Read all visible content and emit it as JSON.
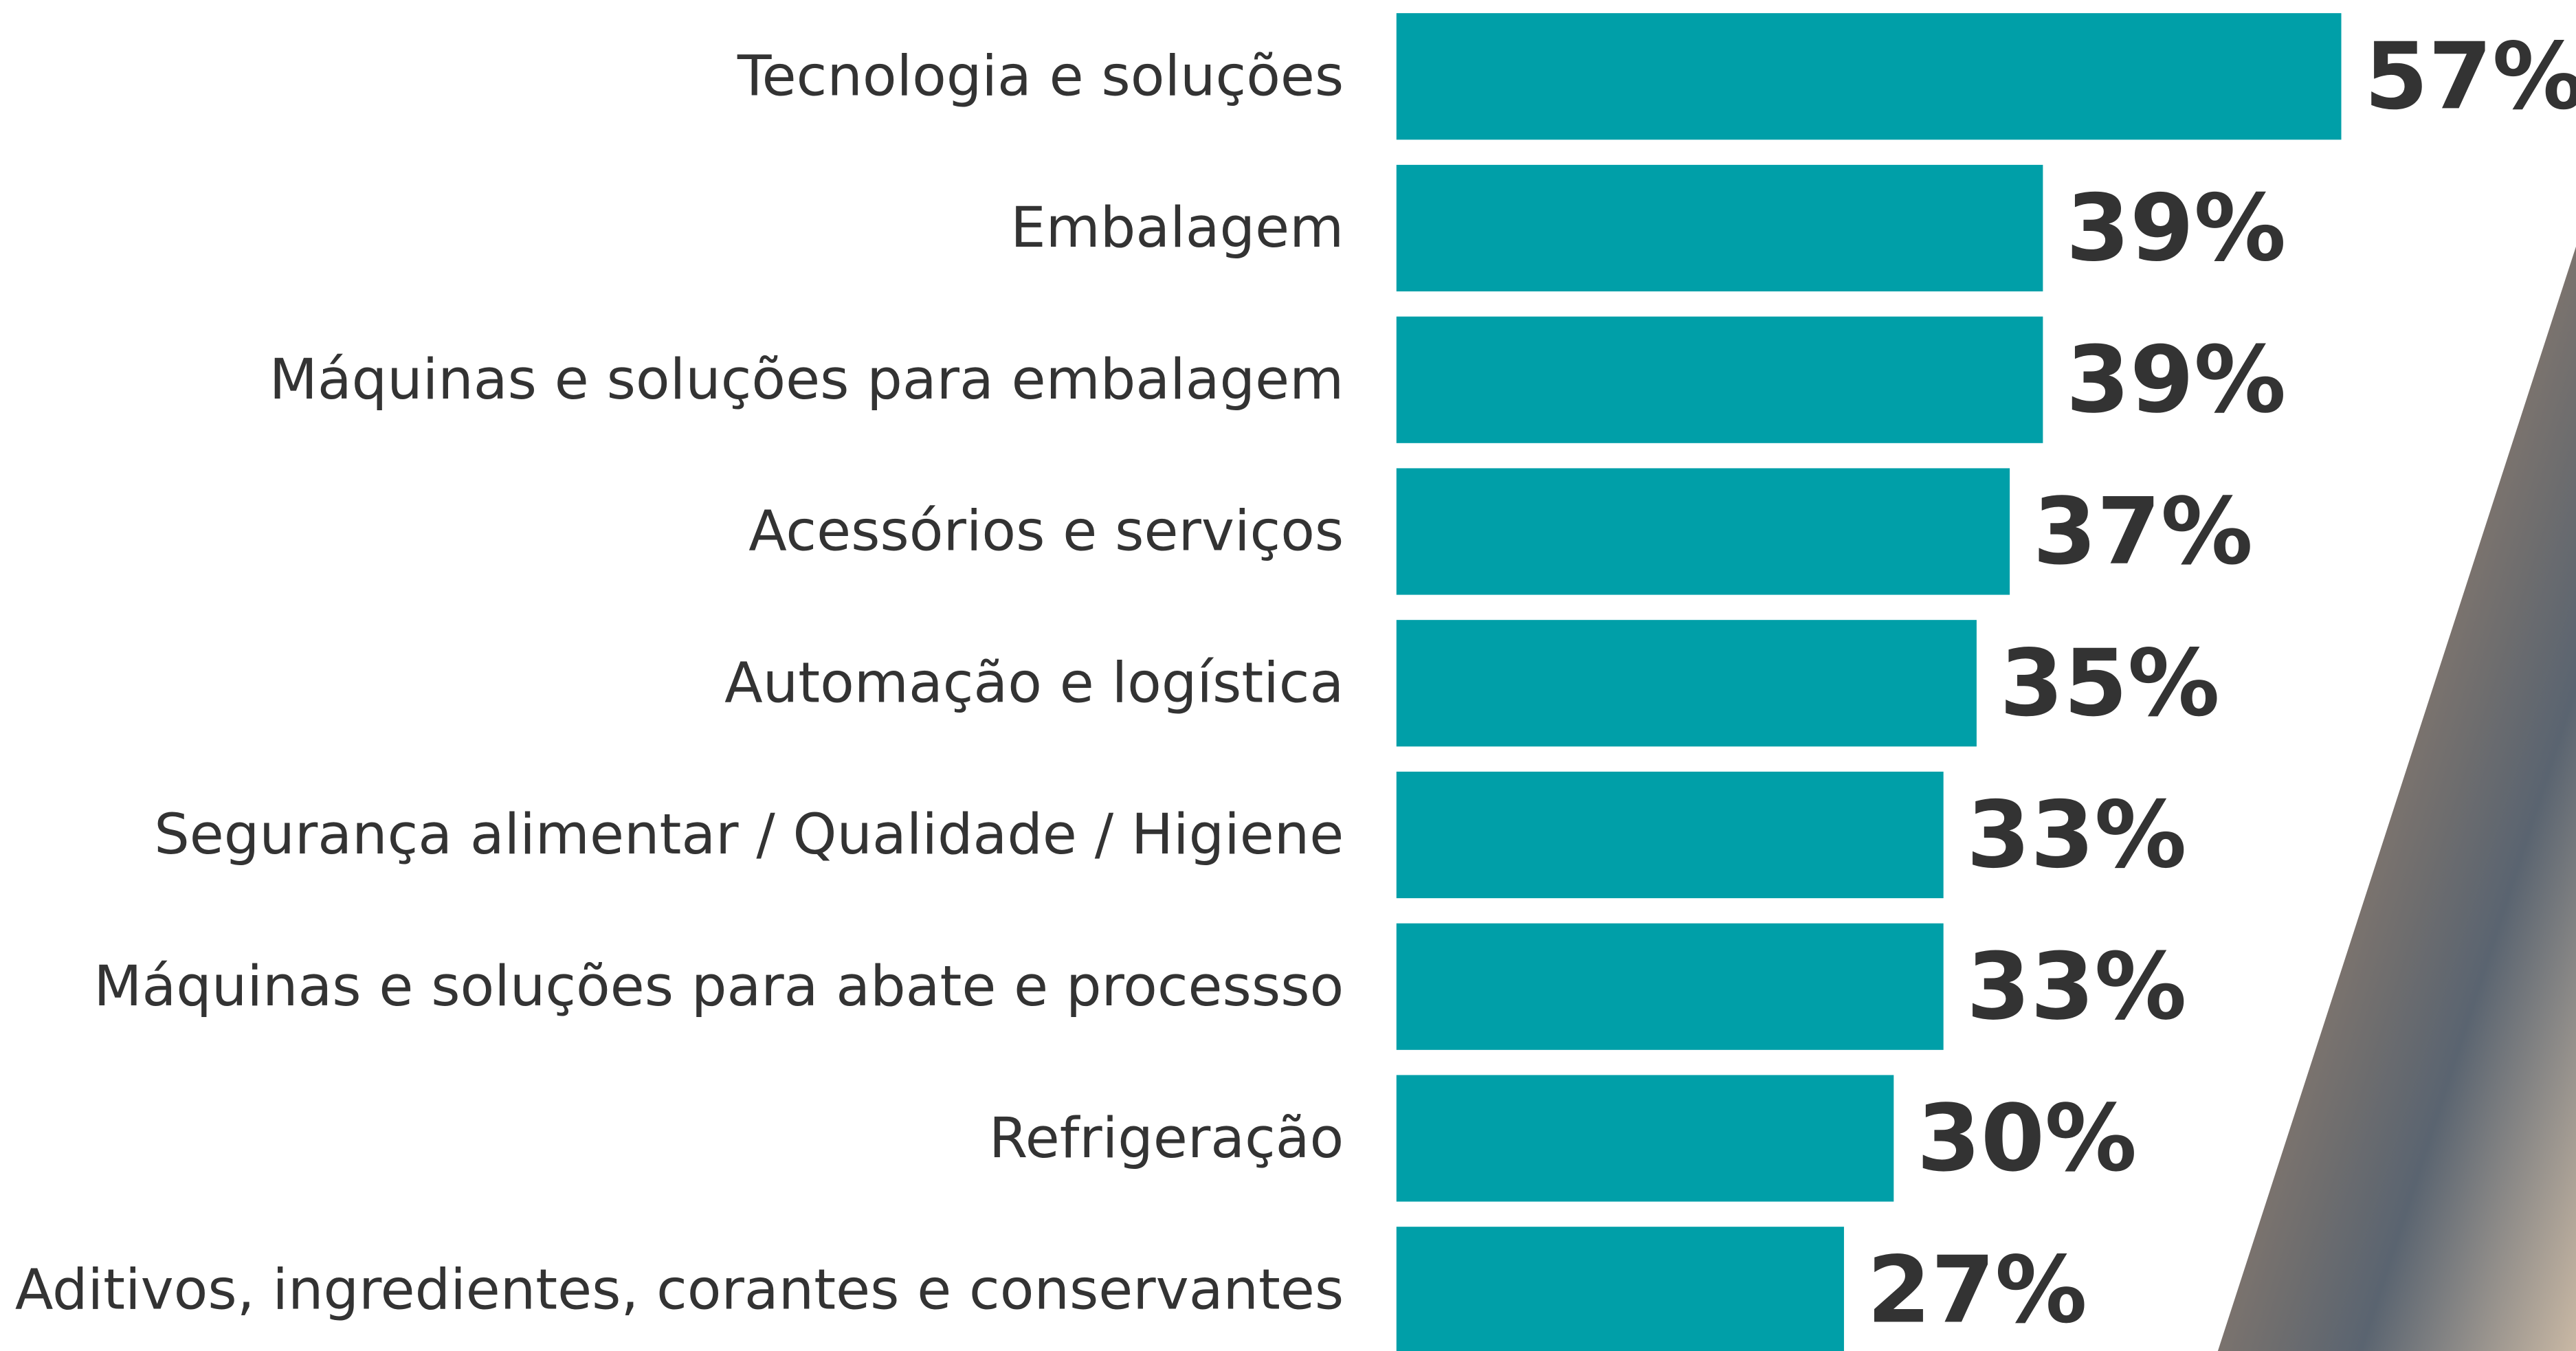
{
  "chart_data": {
    "type": "bar",
    "orientation": "horizontal",
    "categories": [
      "Tecnologia e soluções",
      "Embalagem",
      "Máquinas e soluções para embalagem",
      "Acessórios e serviços",
      "Automação e logística",
      "Segurança alimentar / Qualidade / Higiene",
      "Máquinas e soluções para abate e processso",
      "Refrigeração",
      "Aditivos, ingredientes, corantes e conservantes"
    ],
    "values": [
      57,
      39,
      39,
      37,
      35,
      33,
      33,
      30,
      27
    ],
    "value_labels": [
      "57%",
      "39%",
      "39%",
      "37%",
      "35%",
      "33%",
      "33%",
      "30%",
      "27%"
    ],
    "color": "#009fa8"
  }
}
